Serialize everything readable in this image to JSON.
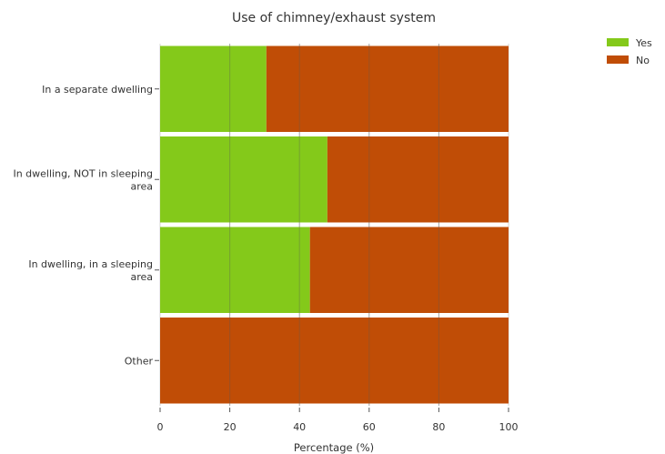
{
  "chart_data": {
    "type": "bar",
    "orientation": "horizontal",
    "stacked": true,
    "title": "Use of chimney/exhaust system",
    "xlabel": "Percentage (%)",
    "ylabel": "",
    "xlim": [
      0,
      100
    ],
    "xticks": [
      "0",
      "20",
      "40",
      "60",
      "80",
      "100"
    ],
    "categories": [
      [
        "In a separate dwelling"
      ],
      [
        "In dwelling, NOT in sleeping",
        "area"
      ],
      [
        "In dwelling, in a sleeping",
        "area"
      ],
      [
        "Other"
      ]
    ],
    "series": [
      {
        "name": "Yes",
        "color": "#84c91a",
        "values": [
          30.5,
          48,
          43,
          0
        ]
      },
      {
        "name": "No",
        "color": "#c04d06",
        "values": [
          69.5,
          52,
          57,
          100
        ]
      }
    ],
    "grid": true,
    "legend_position": "top-right"
  }
}
